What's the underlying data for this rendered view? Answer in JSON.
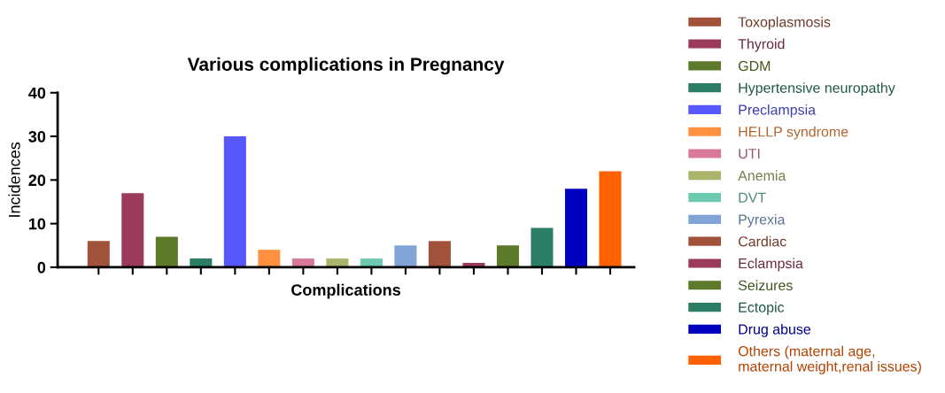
{
  "chart_data": {
    "type": "bar",
    "title": "Various complications in Pregnancy",
    "xlabel": "Complications",
    "ylabel": "Incidences",
    "categories": [
      null,
      null,
      null,
      null,
      null,
      null,
      null,
      null,
      null,
      null,
      null,
      null,
      null,
      null,
      null,
      null
    ],
    "series": [
      {
        "name": "Toxoplasmosis",
        "color": "#a0533a",
        "values": [
          6,
          null,
          null,
          null,
          null,
          null,
          null,
          null,
          null,
          null,
          null,
          null,
          null,
          null,
          null,
          null
        ]
      },
      {
        "name": "Thyroid",
        "color": "#9b3a5a",
        "values": [
          null,
          17,
          null,
          null,
          null,
          null,
          null,
          null,
          null,
          null,
          null,
          null,
          null,
          null,
          null,
          null
        ]
      },
      {
        "name": "GDM",
        "color": "#5d7a2a",
        "values": [
          null,
          null,
          7,
          null,
          null,
          null,
          null,
          null,
          null,
          null,
          null,
          null,
          null,
          null,
          null,
          null
        ]
      },
      {
        "name": "Hypertensive neuropathy",
        "color": "#2b7d66",
        "values": [
          null,
          null,
          null,
          2,
          null,
          null,
          null,
          null,
          null,
          null,
          null,
          null,
          null,
          null,
          null,
          null
        ]
      },
      {
        "name": "Preclampsia",
        "color": "#5757fa",
        "values": [
          null,
          null,
          null,
          null,
          30,
          null,
          null,
          null,
          null,
          null,
          null,
          null,
          null,
          null,
          null,
          null
        ]
      },
      {
        "name": "HELLP syndrome",
        "color": "#ff9140",
        "values": [
          null,
          null,
          null,
          null,
          null,
          4,
          null,
          null,
          null,
          null,
          null,
          null,
          null,
          null,
          null,
          null
        ]
      },
      {
        "name": "UTI",
        "color": "#d8799a",
        "values": [
          null,
          null,
          null,
          null,
          null,
          null,
          2,
          null,
          null,
          null,
          null,
          null,
          null,
          null,
          null,
          null
        ]
      },
      {
        "name": "Anemia",
        "color": "#acb46a",
        "values": [
          null,
          null,
          null,
          null,
          null,
          null,
          null,
          2,
          null,
          null,
          null,
          null,
          null,
          null,
          null,
          null
        ]
      },
      {
        "name": "DVT",
        "color": "#6ccab0",
        "values": [
          null,
          null,
          null,
          null,
          null,
          null,
          null,
          null,
          2,
          null,
          null,
          null,
          null,
          null,
          null,
          null
        ]
      },
      {
        "name": "Pyrexia",
        "color": "#81a3d6",
        "values": [
          null,
          null,
          null,
          null,
          null,
          null,
          null,
          null,
          null,
          5,
          null,
          null,
          null,
          null,
          null,
          null
        ]
      },
      {
        "name": "Cardiac",
        "color": "#a0533a",
        "values": [
          null,
          null,
          null,
          null,
          null,
          null,
          null,
          null,
          null,
          null,
          6,
          null,
          null,
          null,
          null,
          null
        ]
      },
      {
        "name": "Eclampsia",
        "color": "#9b3a5a",
        "values": [
          null,
          null,
          null,
          null,
          null,
          null,
          null,
          null,
          null,
          null,
          null,
          1,
          null,
          null,
          null,
          null
        ]
      },
      {
        "name": "Seizures",
        "color": "#5d7a2a",
        "values": [
          null,
          null,
          null,
          null,
          null,
          null,
          null,
          null,
          null,
          null,
          null,
          null,
          5,
          null,
          null,
          null
        ]
      },
      {
        "name": "Ectopic",
        "color": "#2b7d66",
        "values": [
          null,
          null,
          null,
          null,
          null,
          null,
          null,
          null,
          null,
          null,
          null,
          null,
          null,
          9,
          null,
          null
        ]
      },
      {
        "name": "Drug abuse",
        "color": "#0000c0",
        "values": [
          null,
          null,
          null,
          null,
          null,
          null,
          null,
          null,
          null,
          null,
          null,
          null,
          null,
          null,
          18,
          null
        ]
      },
      {
        "name": "Others (maternal age,\nmaternal weight,renal issues)",
        "color": "#ff6000",
        "values": [
          null,
          null,
          null,
          null,
          null,
          null,
          null,
          null,
          null,
          null,
          null,
          null,
          null,
          null,
          null,
          22
        ]
      }
    ],
    "ylim": [
      0,
      40
    ],
    "yticks": [
      0,
      10,
      20,
      30,
      40
    ],
    "stacked": true,
    "grid": false,
    "legend": "right"
  }
}
